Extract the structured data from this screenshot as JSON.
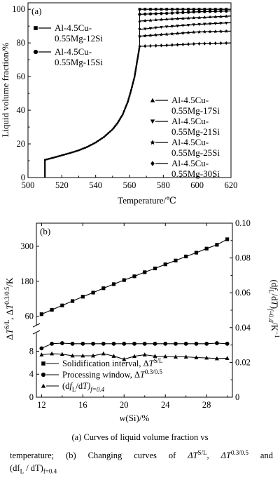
{
  "panel_a": {
    "label": "(a)",
    "xlabel": "Temperature/℃",
    "ylabel": "Liquid volume fraction/%",
    "xticks": [
      "500",
      "520",
      "540",
      "560",
      "580",
      "600",
      "620"
    ],
    "yticks": [
      "0",
      "20",
      "40",
      "60",
      "80",
      "100"
    ],
    "legend": [
      {
        "marker": "square",
        "line1": "Al-4.5Cu-",
        "line2": "0.55Mg-12Si"
      },
      {
        "marker": "circle",
        "line1": "Al-4.5Cu-",
        "line2": "0.55Mg-15Si"
      },
      {
        "marker": "triangle-up",
        "line1": "Al-4.5Cu-",
        "line2": "0.55Mg-17Si"
      },
      {
        "marker": "triangle-down",
        "line1": "Al-4.5Cu-",
        "line2": "0.55Mg-21Si"
      },
      {
        "marker": "star",
        "line1": "Al-4.5Cu-",
        "line2": "0.55Mg-25Si"
      },
      {
        "marker": "diamond",
        "line1": "Al-4.5Cu-",
        "line2": "0.55Mg-30Si"
      }
    ]
  },
  "panel_b": {
    "label": "(b)",
    "xlabel": "w(Si)/%",
    "xticks": [
      "12",
      "16",
      "20",
      "24",
      "28"
    ],
    "yticks_left_upper": [
      "60",
      "180",
      "300"
    ],
    "yticks_left_lower": [
      "0",
      "4",
      "8"
    ],
    "yticks_right": [
      "0",
      "0.02",
      "0.04",
      "0.06",
      "0.08",
      "0.10"
    ],
    "ylabel_left": "ΔT^S/L, ΔT^0.3/0.5/K",
    "ylabel_right": "(df_L/dT)_f=0.4/K⁻¹",
    "legend": [
      {
        "marker": "square",
        "text": "Solidification interval, ΔT",
        "sup": "S/L"
      },
      {
        "marker": "circle",
        "text": "Processing window, ΔT",
        "sup": "0.3/0.5"
      },
      {
        "marker": "triangle-up",
        "text": "(df",
        "sub1": "L",
        "text2": "/dT)",
        "sub2": "f=0.4"
      }
    ]
  },
  "caption": {
    "line1": "(a) Curves of liquid volume fraction vs",
    "line2a": "temperature; (b) Changing curves of ",
    "line2b": "ΔT",
    "line2c": "S/L",
    "line2d": ", ΔT",
    "line2e": "0.3/0.5",
    "line2f": " and",
    "line3a": "(df",
    "line3b": "L",
    "line3c": " / dT)",
    "line3d": "f=0.4"
  },
  "chart_data": [
    {
      "type": "line",
      "title": "",
      "xlabel": "Temperature/℃",
      "ylabel": "Liquid volume fraction/%",
      "xlim": [
        500,
        620
      ],
      "ylim": [
        0,
        100
      ],
      "common_curve": {
        "x": [
          510,
          510,
          515,
          520,
          525,
          530,
          535,
          540,
          545,
          550,
          553,
          556,
          559,
          561,
          563,
          564,
          565,
          566
        ],
        "y": [
          0,
          10.5,
          11.8,
          13.2,
          14.6,
          16.2,
          18.2,
          20.8,
          24.2,
          28.6,
          32.5,
          37.5,
          45,
          52,
          60,
          66,
          72,
          78
        ]
      },
      "series": [
        {
          "name": "Al-4.5Cu-0.55Mg-12Si",
          "marker": "square",
          "x": [
            566,
            580,
            600,
            620
          ],
          "y": [
            100,
            100,
            100,
            100
          ]
        },
        {
          "name": "Al-4.5Cu-0.55Mg-15Si",
          "marker": "circle",
          "x": [
            566,
            580,
            600,
            620
          ],
          "y": [
            97,
            97.5,
            98.5,
            99
          ]
        },
        {
          "name": "Al-4.5Cu-0.55Mg-17Si",
          "marker": "triangle-up",
          "x": [
            566,
            580,
            600,
            620
          ],
          "y": [
            93,
            94,
            95,
            96
          ]
        },
        {
          "name": "Al-4.5Cu-0.55Mg-21Si",
          "marker": "triangle-down",
          "x": [
            566,
            580,
            600,
            620
          ],
          "y": [
            88,
            89.5,
            91,
            92
          ]
        },
        {
          "name": "Al-4.5Cu-0.55Mg-25Si",
          "marker": "star",
          "x": [
            566,
            580,
            600,
            620
          ],
          "y": [
            84,
            85,
            86.5,
            87
          ]
        },
        {
          "name": "Al-4.5Cu-0.55Mg-30Si",
          "marker": "diamond",
          "x": [
            566,
            580,
            600,
            620
          ],
          "y": [
            78,
            78.5,
            79.5,
            80
          ]
        }
      ]
    },
    {
      "type": "line",
      "title": "",
      "xlabel": "w(Si)/%",
      "ylabel": "ΔT^S/L, ΔT^0.3/0.5/K",
      "ylabel_right": "(df_L/dT)_f=0.4/K⁻¹",
      "xlim": [
        11.5,
        30.5
      ],
      "y_break": true,
      "ylim_left_upper": [
        35,
        360
      ],
      "ylim_left_lower": [
        0,
        10.5
      ],
      "ylim_right": [
        0,
        0.1
      ],
      "x": [
        12,
        13,
        14,
        15,
        16,
        17,
        18,
        19,
        20,
        21,
        22,
        23,
        24,
        25,
        26,
        27,
        28,
        29,
        30
      ],
      "series": [
        {
          "name": "Solidification interval, ΔT^S/L",
          "marker": "square",
          "axis": "left-upper",
          "values": [
            67,
            82,
            97,
            112,
            127,
            141,
            156,
            170,
            184,
            197,
            211,
            224,
            238,
            251,
            265,
            278,
            292,
            305,
            324
          ]
        },
        {
          "name": "Processing window, ΔT^0.3/0.5",
          "marker": "circle",
          "axis": "left-lower",
          "values": [
            8.5,
            9.3,
            9.4,
            9.3,
            9.3,
            9.3,
            9.3,
            9.3,
            9.3,
            9.3,
            9.3,
            9.3,
            9.3,
            9.3,
            9.3,
            9.3,
            9.3,
            9.4,
            9.3
          ]
        },
        {
          "name": "(df_L/dT)_f=0.4",
          "marker": "triangle-up",
          "axis": "right",
          "values": [
            0.0244,
            0.025,
            0.0247,
            0.0238,
            0.0238,
            0.0238,
            0.025,
            0.0236,
            0.0218,
            0.0235,
            0.0244,
            0.0236,
            0.0234,
            0.0232,
            0.0232,
            0.0228,
            0.0226,
            0.0222,
            0.0224
          ]
        }
      ]
    }
  ]
}
